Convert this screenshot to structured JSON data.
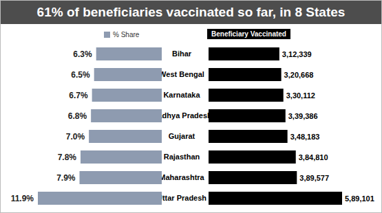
{
  "chart_data": {
    "type": "bar",
    "title": "61% of beneficiaries vaccinated so far, in 8 States",
    "orientation": "horizontal",
    "categories": [
      "Bihar",
      "West Bengal",
      "Karnataka",
      "Madhya Pradesh",
      "Gujarat",
      "Rajasthan",
      "Maharashtra",
      "Uttar Pradesh"
    ],
    "series": [
      {
        "name": "% Share",
        "color": "#8e9bb0",
        "values": [
          6.3,
          6.5,
          6.7,
          6.8,
          7.0,
          7.8,
          7.9,
          11.9
        ],
        "value_labels": [
          "6.3%",
          "6.5%",
          "6.7%",
          "6.8%",
          "7.0%",
          "7.8%",
          "7.9%",
          "11.9%"
        ]
      },
      {
        "name": "Beneficiary Vaccinated",
        "color": "#000000",
        "values": [
          312339,
          320668,
          330112,
          339386,
          348183,
          384810,
          389577,
          589101
        ],
        "value_labels": [
          "3,12,339",
          "3,20,668",
          "3,30,112",
          "3,39,386",
          "3,48,183",
          "3,84,810",
          "3,89,577",
          "5,89,101"
        ]
      }
    ],
    "data_labels": true,
    "tick_labels": "y",
    "legend": "top"
  }
}
